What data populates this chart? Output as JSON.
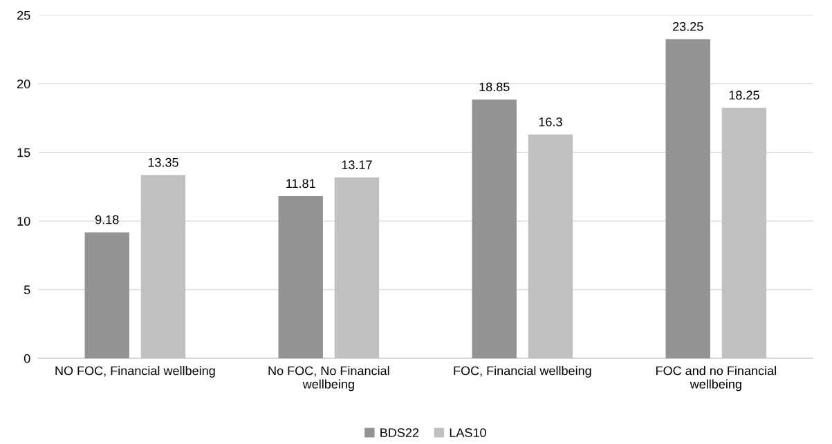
{
  "chart_data": {
    "type": "bar",
    "categories": [
      "NO FOC, Financial wellbeing",
      "No FOC, No Financial\nwellbeing",
      "FOC, Financial wellbeing",
      "FOC and no Financial\nwellbeing"
    ],
    "series": [
      {
        "name": "BDS22",
        "color": "#939393",
        "values": [
          9.18,
          11.81,
          18.85,
          23.25
        ]
      },
      {
        "name": "LAS10",
        "color": "#c0c0c0",
        "values": [
          13.35,
          13.17,
          16.3,
          18.25
        ]
      }
    ],
    "ylim": [
      0,
      25
    ],
    "yticks": [
      0,
      5,
      10,
      15,
      20,
      25
    ],
    "grid": "y",
    "legend": "bottom",
    "data_labels": true
  }
}
